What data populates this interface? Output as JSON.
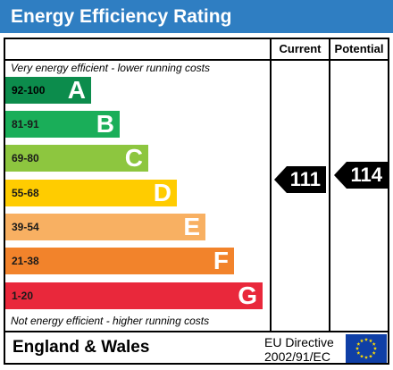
{
  "title": "Energy Efficiency Rating",
  "columns": {
    "current": "Current",
    "potential": "Potential"
  },
  "top_note": "Very energy efficient - lower running costs",
  "bottom_note": "Not energy efficient - higher running costs",
  "bands": [
    {
      "range": "92-100",
      "letter": "A",
      "color": "#0c8c4c"
    },
    {
      "range": "81-91",
      "letter": "B",
      "color": "#1aae59"
    },
    {
      "range": "69-80",
      "letter": "C",
      "color": "#8dc63f"
    },
    {
      "range": "55-68",
      "letter": "D",
      "color": "#ffcc00"
    },
    {
      "range": "39-54",
      "letter": "E",
      "color": "#f8b062"
    },
    {
      "range": "21-38",
      "letter": "F",
      "color": "#f2832b"
    },
    {
      "range": "1-20",
      "letter": "G",
      "color": "#e9283b"
    }
  ],
  "current_rating": "111",
  "potential_rating": "114",
  "footer": {
    "region": "England & Wales",
    "directive_line1": "EU Directive",
    "directive_line2": "2002/91/EC"
  },
  "colors": {
    "header": "#2f7ec2",
    "eu_flag": "#0f3fa6",
    "eu_stars": "#ffdd00"
  }
}
